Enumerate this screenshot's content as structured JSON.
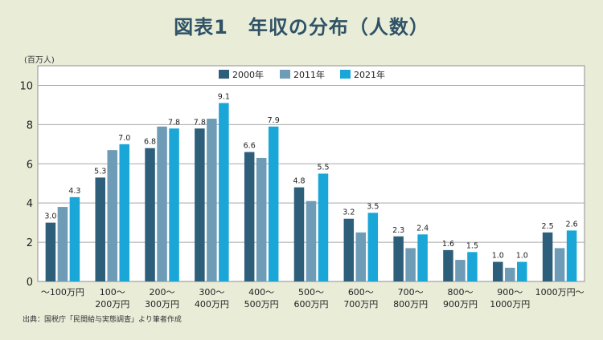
{
  "chart_data": {
    "type": "bar",
    "title": "図表1　年収の分布（人数）",
    "ylabel": "(百万人)",
    "source": "出典：国税庁「民間給与実態調査」より筆者作成",
    "ylim": [
      0,
      11
    ],
    "yticks": [
      "0",
      "2",
      "4",
      "6",
      "8",
      "10"
    ],
    "grid": true,
    "legend_position": "top-center",
    "categories": [
      [
        "〜100万円",
        ""
      ],
      [
        "100〜",
        "200万円"
      ],
      [
        "200〜",
        "300万円"
      ],
      [
        "300〜",
        "400万円"
      ],
      [
        "400〜",
        "500万円"
      ],
      [
        "500〜",
        "600万円"
      ],
      [
        "600〜",
        "700万円"
      ],
      [
        "700〜",
        "800万円"
      ],
      [
        "800〜",
        "900万円"
      ],
      [
        "900〜",
        "1000万円"
      ],
      [
        "1000万円〜",
        ""
      ]
    ],
    "series": [
      {
        "name": "2000年",
        "color": "#2e5f7a",
        "values": [
          3.0,
          5.3,
          6.8,
          7.8,
          6.6,
          4.8,
          3.2,
          2.3,
          1.6,
          1.0,
          2.5
        ],
        "labels": [
          "3.0",
          "5.3",
          "6.8",
          "7.8",
          "6.6",
          "4.8",
          "3.2",
          "2.3",
          "1.6",
          "1.0",
          "2.5"
        ]
      },
      {
        "name": "2011年",
        "color": "#6e9bb6",
        "values": [
          3.8,
          6.7,
          7.9,
          8.3,
          6.3,
          4.1,
          2.5,
          1.7,
          1.1,
          0.7,
          1.7
        ],
        "labels": [
          "",
          "",
          "",
          "",
          "",
          "",
          "",
          "",
          "",
          "",
          ""
        ]
      },
      {
        "name": "2021年",
        "color": "#1aa7d8",
        "values": [
          4.3,
          7.0,
          7.8,
          9.1,
          7.9,
          5.5,
          3.5,
          2.4,
          1.5,
          1.0,
          2.6
        ],
        "labels": [
          "4.3",
          "7.0",
          "7.8",
          "9.1",
          "7.9",
          "5.5",
          "3.5",
          "2.4",
          "1.5",
          "1.0",
          "2.6"
        ]
      }
    ]
  }
}
